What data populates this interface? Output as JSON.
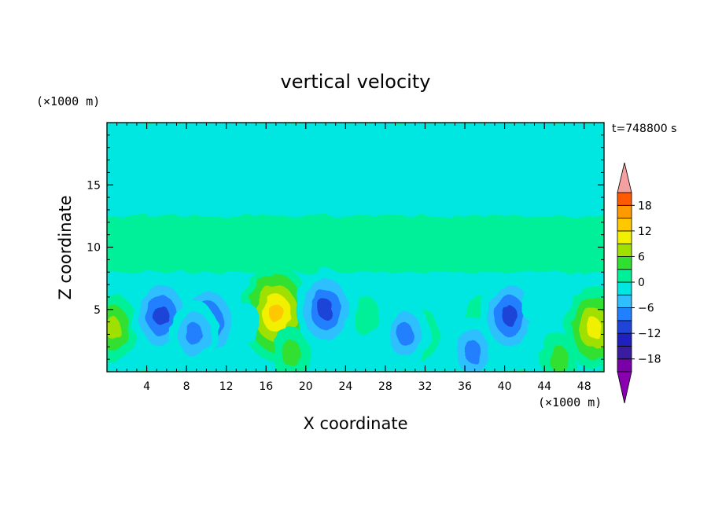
{
  "chart_data": {
    "type": "heatmap",
    "title": "vertical velocity",
    "xlabel": "X coordinate",
    "ylabel": "Z coordinate",
    "x_unit": "(×1000 m)",
    "y_unit": "(×1000 m)",
    "time_label": "t=748800 s",
    "xlim": [
      0,
      50
    ],
    "ylim": [
      0,
      20
    ],
    "x_ticks": [
      4,
      8,
      12,
      16,
      20,
      24,
      28,
      32,
      36,
      40,
      44,
      48
    ],
    "y_ticks": [
      5,
      10,
      15
    ],
    "colorbar": {
      "ticks": [
        18,
        12,
        6,
        0,
        -6,
        -12,
        -18
      ],
      "tick_labels": [
        "18",
        "12",
        "6",
        "0",
        "−6",
        "−12",
        "−18"
      ],
      "levels": [
        -21,
        -18,
        -15,
        -12,
        -9,
        -6,
        -3,
        0,
        3,
        6,
        9,
        12,
        15,
        18,
        21
      ],
      "colors": [
        "#7a00a8",
        "#3a1ca0",
        "#2020c0",
        "#1f44d8",
        "#2080ff",
        "#2fbfff",
        "#00e6e0",
        "#00f09a",
        "#30e030",
        "#a0e000",
        "#f0f000",
        "#ffc800",
        "#ff9a00",
        "#ff5a00",
        "#ff1a1a"
      ],
      "extend_low_color": "#8a00b0",
      "extend_high_color": "#f4a0a0"
    },
    "features": [
      {
        "x": 0.6,
        "z": 3.5,
        "value": 11
      },
      {
        "x": 17.0,
        "z": 4.7,
        "value": 17
      },
      {
        "x": 18.5,
        "z": 1.5,
        "value": 8
      },
      {
        "x": 49.0,
        "z": 3.5,
        "value": 13
      },
      {
        "x": 45.5,
        "z": 1.0,
        "value": 6
      },
      {
        "x": 31.5,
        "z": 3.0,
        "value": 7
      },
      {
        "x": 26.0,
        "z": 4.5,
        "value": 4
      },
      {
        "x": 37.5,
        "z": 4.5,
        "value": 5
      },
      {
        "x": 5.5,
        "z": 4.5,
        "value": -12
      },
      {
        "x": 10.2,
        "z": 4.0,
        "value": -12
      },
      {
        "x": 8.8,
        "z": 3.0,
        "value": -10
      },
      {
        "x": 22.0,
        "z": 5.0,
        "value": -12
      },
      {
        "x": 30.0,
        "z": 3.0,
        "value": -9
      },
      {
        "x": 36.8,
        "z": 1.6,
        "value": -11
      },
      {
        "x": 40.5,
        "z": 4.5,
        "value": -14
      },
      {
        "x": 43.0,
        "z": 5.5,
        "value": -4
      },
      {
        "x": 14.0,
        "z": 4.0,
        "value": -5
      }
    ]
  }
}
